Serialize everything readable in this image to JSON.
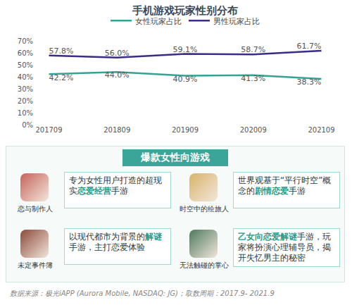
{
  "chart_data": {
    "type": "line",
    "title": "手机游戏玩家性别分布",
    "categories": [
      "201709",
      "201809",
      "201909",
      "202009",
      "202109"
    ],
    "series": [
      {
        "name": "女性玩家占比",
        "color": "#33a394",
        "values": [
          42.2,
          44.0,
          40.9,
          41.3,
          38.3
        ],
        "value_labels": [
          "42.2%",
          "44.0%",
          "40.9%",
          "41.3%",
          "38.3%"
        ]
      },
      {
        "name": "男性玩家占比",
        "color": "#3b2d86",
        "values": [
          57.8,
          56.0,
          59.1,
          58.7,
          61.7
        ],
        "value_labels": [
          "57.8%",
          "56.0%",
          "59.1%",
          "58.7%",
          "61.7%"
        ]
      }
    ],
    "ylim": [
      0,
      70
    ],
    "yticks": [
      {
        "value": 0,
        "label": "0%"
      },
      {
        "value": 10,
        "label": "10%"
      },
      {
        "value": 20,
        "label": "20%"
      },
      {
        "value": 30,
        "label": "30%"
      },
      {
        "value": 40,
        "label": "40%"
      },
      {
        "value": 50,
        "label": "50%"
      },
      {
        "value": 60,
        "label": "60%"
      },
      {
        "value": 70,
        "label": "70%"
      }
    ],
    "grid": false,
    "legend": "top",
    "data_labels": true
  },
  "panel": {
    "title": "爆款女性向游戏",
    "games": [
      {
        "name": "恋与制作人",
        "description": [
          {
            "text": "专为女性用户打造的超现实"
          },
          {
            "text": "恋爱经营",
            "highlight": true
          },
          {
            "text": "手游"
          }
        ]
      },
      {
        "name": "时空中的绘旅人",
        "description": [
          {
            "text": "世界观基于“平行时空”概念的"
          },
          {
            "text": "剧情恋爱",
            "highlight": true
          },
          {
            "text": "手游"
          }
        ]
      },
      {
        "name": "未定事件簿",
        "description": [
          {
            "text": "以现代都市为背景的"
          },
          {
            "text": "解谜",
            "highlight": true
          },
          {
            "text": "手游，主打恋爱体验"
          }
        ]
      },
      {
        "name": "无法触碰的掌心",
        "description": [
          {
            "text": "乙女向恋爱解谜",
            "highlight": true
          },
          {
            "text": "手游，玩家将扮演心理辅导员，揭开失忆男主的秘密"
          }
        ]
      }
    ]
  },
  "source": "数据来源：极光iAPP (Aurora Mobile, NASDAQ: JG)；取数周期：2017.9- 2021.9"
}
